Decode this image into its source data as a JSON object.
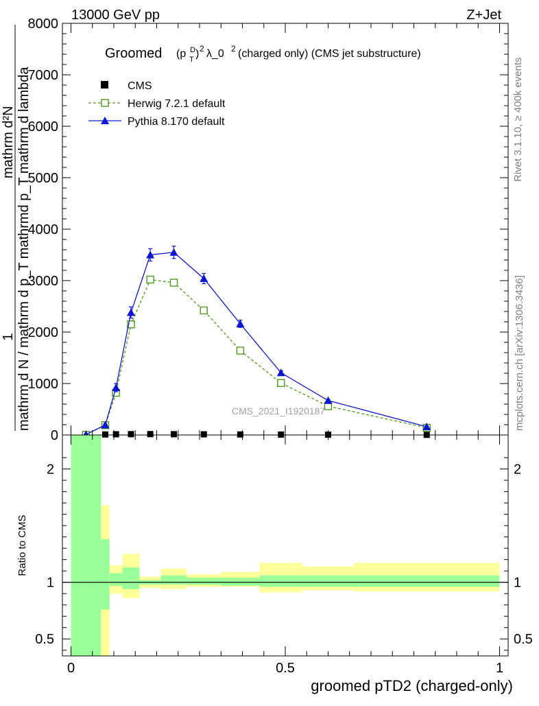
{
  "header": {
    "left": "13000 GeV pp",
    "right": "Z+Jet"
  },
  "side_text": {
    "rivet": "Rivet 3.1.10, ≥ 400k events",
    "mcplots": "mcplots.cern.ch [arXiv:1306.3436]"
  },
  "watermark": "CMS_2021_I1920187",
  "main_title": {
    "prefix": "Groomed",
    "suffix": "λ_0",
    "rest": " (charged only) (CMS jet substructure)"
  },
  "ylabel": {
    "numerator_1": "1",
    "denominator": "mathrm d N / mathrm d p_T mathrmd p_T mathrm d lambda",
    "numerator_2": "mathrm d²N"
  },
  "xlabel": "groomed pTD2 (charged-only)",
  "ratio_ylabel": "Ratio to CMS",
  "legend": [
    {
      "label": "CMS",
      "color": "#000000",
      "marker": "square-filled"
    },
    {
      "label": "Herwig 7.2.1 default",
      "color": "#4d9a1a",
      "marker": "square-open",
      "dash": true
    },
    {
      "label": "Pythia 8.170 default",
      "color": "#0a14d2",
      "marker": "triangle-filled"
    }
  ],
  "chart_data": [
    {
      "type": "line",
      "panel": "main",
      "xlim": [
        -0.02,
        1.02
      ],
      "ylim": [
        0,
        8000
      ],
      "xticks": [
        0,
        0.5,
        1
      ],
      "yticks": [
        0,
        1000,
        2000,
        3000,
        4000,
        5000,
        6000,
        7000,
        8000
      ],
      "ytick_labels": [
        "0",
        "1000",
        "2000",
        "3000",
        "4000",
        "5000",
        "6000",
        "7000",
        "8000"
      ],
      "series": [
        {
          "name": "CMS",
          "color": "#000000",
          "x": [
            0.035,
            0.08,
            0.105,
            0.14,
            0.185,
            0.24,
            0.31,
            0.395,
            0.49,
            0.6,
            0.83
          ],
          "y": [
            5,
            10,
            14,
            16,
            17,
            15,
            13,
            10,
            8,
            6,
            3
          ]
        },
        {
          "name": "Herwig 7.2.1 default",
          "color": "#4d9a1a",
          "x": [
            0.035,
            0.08,
            0.105,
            0.14,
            0.185,
            0.24,
            0.31,
            0.395,
            0.49,
            0.6,
            0.83
          ],
          "y": [
            5,
            190,
            820,
            2150,
            3020,
            2960,
            2420,
            1640,
            1010,
            560,
            140
          ],
          "err": [
            0,
            10,
            30,
            50,
            60,
            60,
            50,
            40,
            30,
            20,
            10
          ]
        },
        {
          "name": "Pythia 8.170 default",
          "color": "#0a14d2",
          "x": [
            0.035,
            0.08,
            0.105,
            0.14,
            0.185,
            0.24,
            0.31,
            0.395,
            0.49,
            0.6,
            0.83
          ],
          "y": [
            10,
            195,
            920,
            2380,
            3500,
            3550,
            3040,
            2160,
            1210,
            670,
            160
          ],
          "err": [
            0,
            20,
            80,
            110,
            120,
            120,
            100,
            70,
            40,
            25,
            10
          ]
        }
      ]
    },
    {
      "type": "area",
      "panel": "ratio",
      "xlim": [
        -0.02,
        1.02
      ],
      "ylim": [
        0.35,
        2.3
      ],
      "yticks": [
        0.5,
        1,
        2
      ],
      "ytick_labels": [
        "0.5",
        "1",
        "2"
      ],
      "reference_line": 1,
      "bins": [
        {
          "x0": 0.0,
          "x1": 0.07,
          "stat_lo": 0.0,
          "stat_hi": 3.0,
          "tot_lo": 0.0,
          "tot_hi": 3.0
        },
        {
          "x0": 0.07,
          "x1": 0.09,
          "stat_lo": 0.76,
          "stat_hi": 1.38,
          "tot_lo": 0.0,
          "tot_hi": 1.68
        },
        {
          "x0": 0.09,
          "x1": 0.12,
          "stat_lo": 0.97,
          "stat_hi": 1.08,
          "tot_lo": 0.9,
          "tot_hi": 1.15
        },
        {
          "x0": 0.12,
          "x1": 0.16,
          "stat_lo": 0.94,
          "stat_hi": 1.13,
          "tot_lo": 0.86,
          "tot_hi": 1.25
        },
        {
          "x0": 0.16,
          "x1": 0.21,
          "stat_lo": 0.98,
          "stat_hi": 1.02,
          "tot_lo": 0.95,
          "tot_hi": 1.05
        },
        {
          "x0": 0.21,
          "x1": 0.27,
          "stat_lo": 0.98,
          "stat_hi": 1.06,
          "tot_lo": 0.94,
          "tot_hi": 1.12
        },
        {
          "x0": 0.27,
          "x1": 0.35,
          "stat_lo": 0.98,
          "stat_hi": 1.04,
          "tot_lo": 0.96,
          "tot_hi": 1.07
        },
        {
          "x0": 0.35,
          "x1": 0.44,
          "stat_lo": 0.97,
          "stat_hi": 1.04,
          "tot_lo": 0.96,
          "tot_hi": 1.09
        },
        {
          "x0": 0.44,
          "x1": 0.54,
          "stat_lo": 0.96,
          "stat_hi": 1.06,
          "tot_lo": 0.91,
          "tot_hi": 1.17
        },
        {
          "x0": 0.54,
          "x1": 0.66,
          "stat_lo": 0.96,
          "stat_hi": 1.06,
          "tot_lo": 0.93,
          "tot_hi": 1.14
        },
        {
          "x0": 0.66,
          "x1": 1.0,
          "stat_lo": 0.96,
          "stat_hi": 1.06,
          "tot_lo": 0.92,
          "tot_hi": 1.17
        }
      ],
      "colors": {
        "stat": "#99ff99",
        "total": "#ffff99"
      }
    }
  ]
}
